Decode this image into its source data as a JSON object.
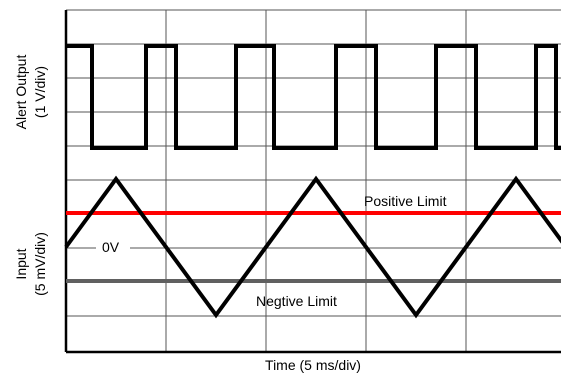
{
  "chart_data": {
    "type": "line",
    "xlabel": "Time (5 ms/div)",
    "x_divisions": 5,
    "grid": true,
    "panels": [
      {
        "name": "alert",
        "ylabel_lines": [
          "Alert Output",
          "(1 V/div)"
        ],
        "y_divisions": 5,
        "series": [
          {
            "color": "#000000",
            "points": [
              [
                0,
                4
              ],
              [
                1.3,
                4
              ],
              [
                1.3,
                1
              ],
              [
                4.0,
                1
              ],
              [
                4.0,
                4
              ],
              [
                5.5,
                4
              ],
              [
                5.5,
                1
              ],
              [
                8.5,
                1
              ],
              [
                8.5,
                4
              ],
              [
                10.4,
                4
              ],
              [
                10.4,
                1
              ],
              [
                13.5,
                1
              ],
              [
                13.5,
                4
              ],
              [
                15.5,
                4
              ],
              [
                15.5,
                1
              ],
              [
                18.5,
                1
              ],
              [
                18.5,
                4
              ],
              [
                20.5,
                4
              ],
              [
                20.5,
                1
              ],
              [
                23.5,
                1
              ],
              [
                23.5,
                4
              ],
              [
                24.5,
                4
              ],
              [
                24.5,
                1
              ],
              [
                25,
                1
              ]
            ]
          }
        ]
      },
      {
        "name": "input",
        "ylabel_lines": [
          "Input",
          "(5 mV/div)"
        ],
        "y_divisions": 5,
        "series": [
          {
            "color": "#000000",
            "points": [
              [
                0,
                0
              ],
              [
                2.5,
                10
              ],
              [
                7.5,
                -10
              ],
              [
                12.5,
                10
              ],
              [
                17.5,
                -10
              ],
              [
                22.5,
                10
              ],
              [
                25,
                0
              ]
            ]
          }
        ],
        "reference_lines": [
          {
            "label": "Positive Limit",
            "value": 5,
            "color": "#ff0000"
          },
          {
            "label": "Negtive Limit",
            "value": -5,
            "color": "#606060"
          }
        ],
        "zero_label": "0V"
      }
    ]
  }
}
